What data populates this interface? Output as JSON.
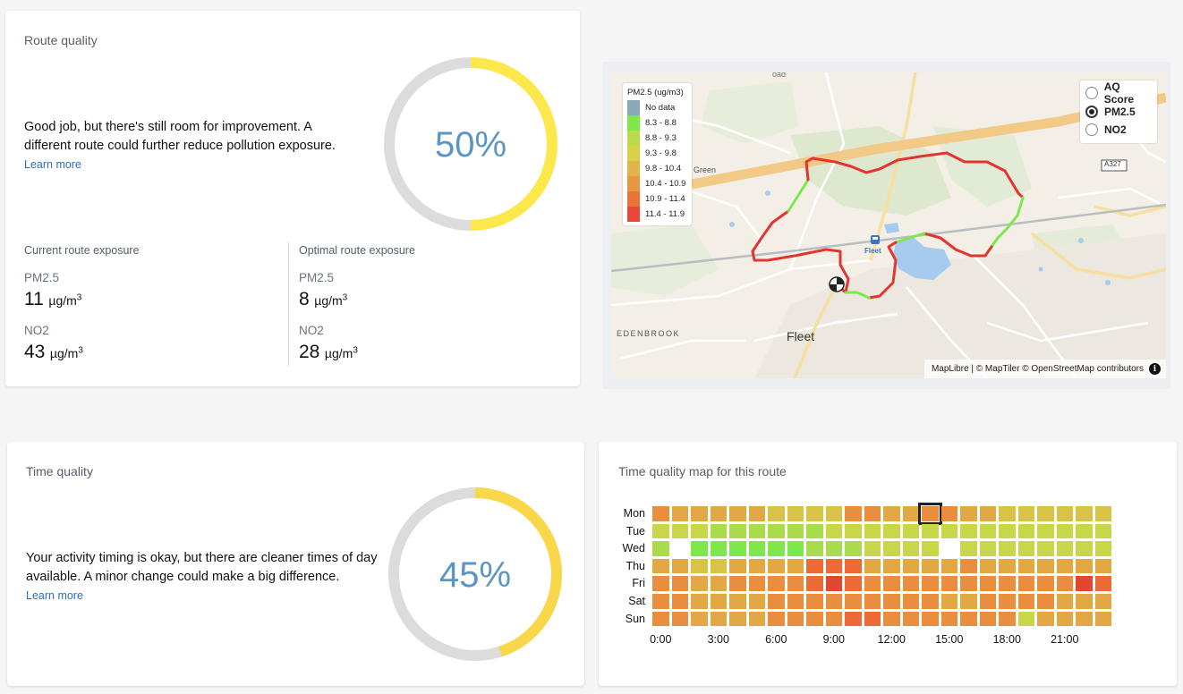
{
  "route_card": {
    "title": "Route quality",
    "gauge_value": 50,
    "gauge_text": "50%",
    "message": "Good job, but there's still room for improvement. A different route could further reduce pollution exposure.",
    "learn_more": "Learn more",
    "current": {
      "heading": "Current route exposure",
      "pm_label": "PM2.5",
      "pm_value": "11",
      "no2_label": "NO2",
      "no2_value": "43"
    },
    "optimal": {
      "heading": "Optimal route exposure",
      "pm_label": "PM2.5",
      "pm_value": "8",
      "no2_label": "NO2",
      "no2_value": "28"
    },
    "unit_base": "µg/m",
    "unit_exp": "3"
  },
  "map": {
    "legend_title": "PM2.5 (ug/m3)",
    "legend": [
      {
        "label": "No data",
        "color": "#8aa8b8"
      },
      {
        "label": "8.3 - 8.8",
        "color": "#7ee84a"
      },
      {
        "label": "8.8 - 9.3",
        "color": "#b9da4a"
      },
      {
        "label": "9.3 - 9.8",
        "color": "#d8d248"
      },
      {
        "label": "9.8 - 10.4",
        "color": "#e2b447"
      },
      {
        "label": "10.4 - 10.9",
        "color": "#ea9640"
      },
      {
        "label": "10.9 - 11.4",
        "color": "#ec7238"
      },
      {
        "label": "11.4 - 11.9",
        "color": "#e8473a"
      }
    ],
    "layers": [
      {
        "label": "AQ Score",
        "selected": false
      },
      {
        "label": "PM2.5",
        "selected": true
      },
      {
        "label": "NO2",
        "selected": false
      }
    ],
    "place_labels": {
      "fleet": "Fleet",
      "station": "Fleet",
      "edenbrook": "EDENBROOK",
      "green": "Green",
      "road": "A327",
      "roadtop": "oad"
    },
    "attribution": "MapLibre | © MapTiler © OpenStreetMap contributors",
    "info_icon": "i"
  },
  "time_card": {
    "title": "Time quality",
    "gauge_value": 45,
    "gauge_text": "45%",
    "message": "Your activity timing is okay, but there are cleaner times of day available. A minor change could make a big difference.",
    "learn_more": "Learn more"
  },
  "heatmap_card": {
    "title": "Time quality map for this route",
    "days": [
      "Mon",
      "Tue",
      "Wed",
      "Thu",
      "Fri",
      "Sat",
      "Sun"
    ],
    "hour_labels": [
      "0:00",
      "3:00",
      "6:00",
      "9:00",
      "12:00",
      "15:00",
      "18:00",
      "21:00"
    ],
    "selected": {
      "day": 0,
      "hour": 14
    },
    "palette": {
      "N": "none",
      "G": "#7ee84a",
      "L": "#a9dc4c",
      "Y": "#c8d64a",
      "A": "#d9c346",
      "B": "#e2a844",
      "O": "#e88e3e",
      "R": "#ec6a36",
      "D": "#e3452e"
    },
    "rows": [
      "OBBBBBAAAAOOBBOOBBAAAAAA",
      "YYYLLLLLLYYYYYYYYYYYYYYY",
      "LNGGGGGGLLLYYYYNYYYYYYYY",
      "BBAABBBBRRRBBBBBOBBBBBBB",
      "OOBBOOOORDROOOOOOOOOOODR",
      "OOBBBBOOOOOOOOOBBOOOOBBB",
      "OOBBBBOOOORROOOOOOOYBBBB"
    ]
  }
}
